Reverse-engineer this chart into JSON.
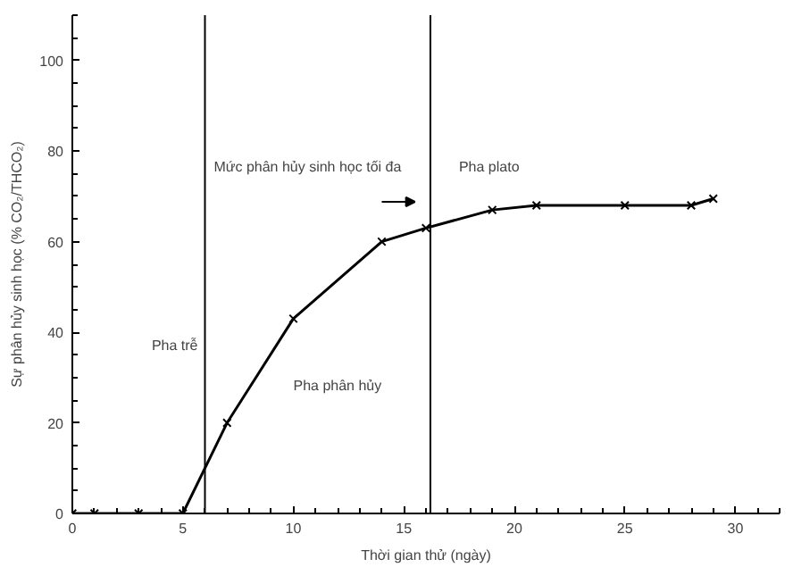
{
  "chart_data": {
    "type": "line",
    "xlabel": "Thời gian thử (ngày)",
    "ylabel": "Sự phân hủy sinh học (% CO₂/THCO₂)",
    "x": [
      0,
      1,
      3,
      5,
      7,
      10,
      14,
      16,
      19,
      21,
      25,
      28,
      29
    ],
    "series": [
      {
        "color": "#000000",
        "values": [
          0,
          0,
          0,
          0,
          20,
          43,
          60,
          63,
          67,
          68,
          68,
          68,
          69.5
        ]
      }
    ],
    "xlim": [
      0,
      32
    ],
    "ylim": [
      0,
      110
    ],
    "xticks": [
      0,
      5,
      10,
      15,
      20,
      25,
      30
    ],
    "yticks": [
      0,
      20,
      40,
      60,
      80,
      100
    ],
    "marker": "cross",
    "line_style": "solid",
    "grid": false,
    "ref_lines": [
      {
        "axis": "x",
        "value": 6,
        "label": "Pha trễ"
      },
      {
        "axis": "x",
        "value": 16.2,
        "label": "Pha plato"
      }
    ],
    "annotations": [
      "Pha phân hủy",
      "Mức phân hủy sinh học tối đa"
    ]
  }
}
